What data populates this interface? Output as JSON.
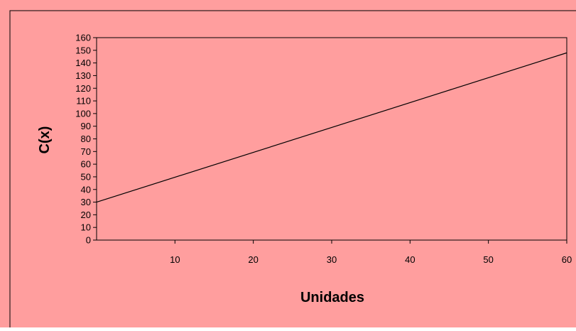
{
  "colors": {
    "chart_background": "#ff9e9e",
    "plot_background": "#ff9e9e",
    "line": "#000000",
    "axis": "#000000",
    "frame_border": "#000000"
  },
  "chart_data": {
    "type": "line",
    "title": "",
    "xlabel": "Unidades",
    "ylabel": "C(x)",
    "xlim": [
      0,
      60
    ],
    "ylim": [
      0,
      160
    ],
    "x_ticks": [
      10,
      20,
      30,
      40,
      50,
      60
    ],
    "y_ticks": [
      0,
      10,
      20,
      30,
      40,
      50,
      60,
      70,
      80,
      90,
      100,
      110,
      120,
      130,
      140,
      150,
      160
    ],
    "grid": false,
    "legend": "none",
    "series": [
      {
        "x": [
          0,
          60
        ],
        "y": [
          30,
          148
        ]
      }
    ]
  }
}
